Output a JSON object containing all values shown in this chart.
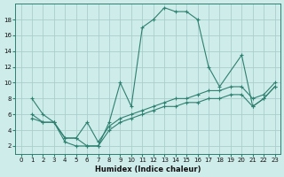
{
  "xlabel": "Humidex (Indice chaleur)",
  "bg_color": "#ceecea",
  "line_color": "#2e8070",
  "grid_color": "#aacfcb",
  "xlim": [
    -0.5,
    23.5
  ],
  "ylim": [
    1,
    20
  ],
  "xticks": [
    0,
    1,
    2,
    3,
    4,
    5,
    6,
    7,
    8,
    9,
    10,
    11,
    12,
    13,
    14,
    15,
    16,
    17,
    18,
    19,
    20,
    21,
    22,
    23
  ],
  "yticks": [
    2,
    4,
    6,
    8,
    10,
    12,
    14,
    16,
    18
  ],
  "line1_x": [
    1,
    2,
    3,
    4,
    5,
    6,
    7,
    8,
    9,
    10,
    11,
    12,
    13,
    14,
    15,
    16,
    17,
    18,
    20,
    21,
    22,
    23
  ],
  "line1_y": [
    8,
    6,
    5,
    3,
    3,
    2,
    2,
    5,
    10,
    7,
    17,
    18,
    19.5,
    19,
    19,
    18,
    12,
    9.5,
    13.5,
    7,
    8,
    9.5
  ],
  "line2_x": [
    1,
    2,
    3,
    4,
    5,
    6,
    7,
    8,
    9,
    10,
    11,
    12,
    13,
    14,
    15,
    16,
    17,
    18,
    19,
    20,
    21,
    22,
    23
  ],
  "line2_y": [
    6,
    5,
    5,
    3,
    3,
    5,
    2.5,
    4.5,
    5.5,
    6,
    6.5,
    7,
    7.5,
    8,
    8,
    8.5,
    9,
    9,
    9.5,
    9.5,
    8,
    8.5,
    10
  ],
  "line3_x": [
    1,
    2,
    3,
    4,
    5,
    6,
    7,
    8,
    9,
    10,
    11,
    12,
    13,
    14,
    15,
    16,
    17,
    18,
    19,
    20,
    21,
    22,
    23
  ],
  "line3_y": [
    5.5,
    5,
    5,
    2.5,
    2,
    2,
    2,
    4,
    5,
    5.5,
    6,
    6.5,
    7,
    7,
    7.5,
    7.5,
    8,
    8,
    8.5,
    8.5,
    7,
    8,
    9.5
  ]
}
